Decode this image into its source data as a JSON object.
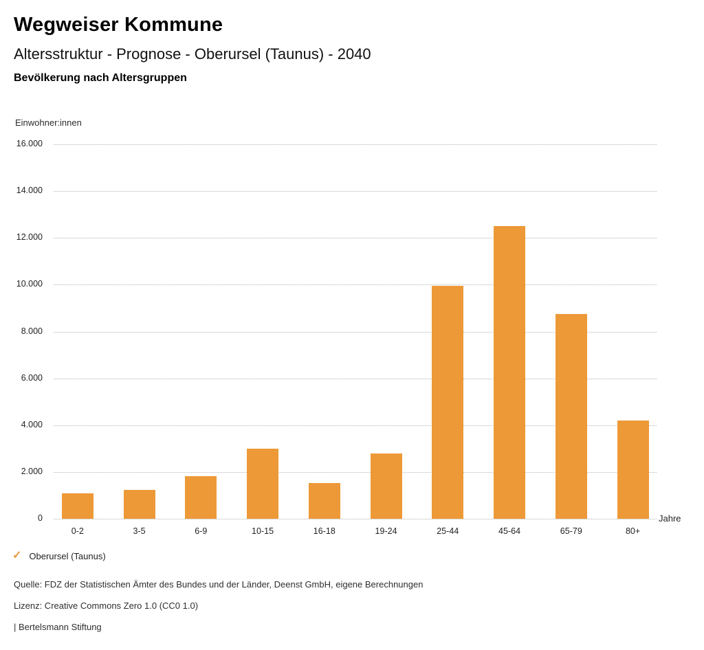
{
  "header": {
    "title": "Wegweiser Kommune",
    "subtitle": "Altersstruktur - Prognose - Oberursel (Taunus) - 2040",
    "section_heading": "Bevölkerung nach Altersgruppen"
  },
  "chart_data": {
    "type": "bar",
    "title": "Bevölkerung nach Altersgruppen",
    "ylabel": "Einwohner:innen",
    "xlabel": "Jahre",
    "categories": [
      "0-2",
      "3-5",
      "6-9",
      "10-15",
      "16-18",
      "19-24",
      "25-44",
      "45-64",
      "65-79",
      "80+"
    ],
    "values": [
      1100,
      1230,
      1810,
      3000,
      1520,
      2790,
      9950,
      12520,
      8740,
      4200
    ],
    "ylim": [
      0,
      16000
    ],
    "ytick_step": 2000,
    "ytick_labels": [
      "0",
      "2.000",
      "4.000",
      "6.000",
      "8.000",
      "10.000",
      "12.000",
      "14.000",
      "16.000"
    ],
    "grid": "horizontal-dotted",
    "legend_position": "bottom-left",
    "bar_color": "#ED9937",
    "legend": {
      "marker": "check",
      "label": "Oberursel (Taunus)"
    }
  },
  "footer": {
    "source": "Quelle: FDZ der Statistischen Ämter des Bundes und der Länder, Deenst GmbH, eigene Berechnungen",
    "license": "Lizenz: Creative Commons Zero 1.0 (CC0 1.0)",
    "publisher": "| Bertelsmann Stiftung"
  }
}
